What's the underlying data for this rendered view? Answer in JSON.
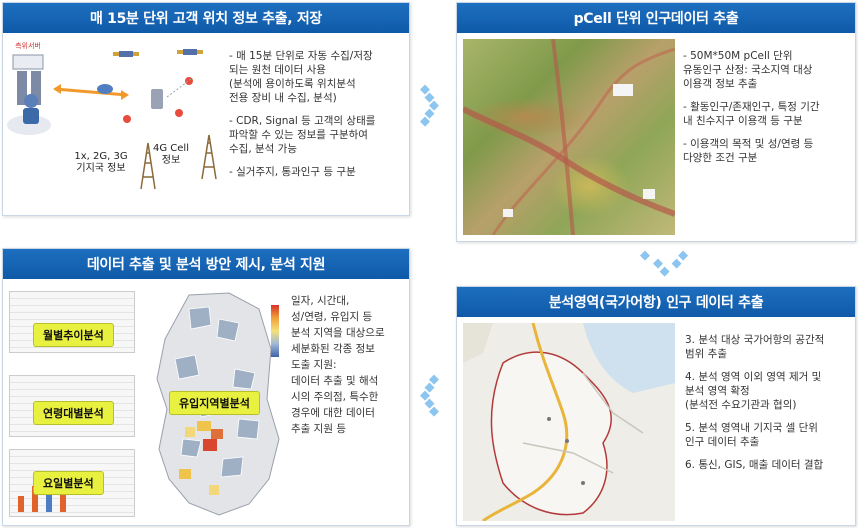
{
  "panels": {
    "top_left": {
      "title": "매 15분 단위 고객 위치 정보 추출, 저장",
      "bullets": [
        "- 매 15분 단위로 자동 수집/저장\n  되는 원천 데이터 사용\n  (분석에 용이하도록 위치분석\n  전용 장비 내 수집, 분석)",
        "- CDR, Signal 등 고객의 상태를\n  파악할 수 있는 정보를 구분하여\n  수집, 분석 가능",
        "- 실거주지, 통과인구 등 구분"
      ],
      "caption_left": "1x, 2G, 3G\n기지국 정보",
      "caption_right": "4G Cell\n정보",
      "server_label": "측위서버"
    },
    "top_right": {
      "title": "pCell 단위 인구데이터 추출",
      "bullets": [
        "- 50M*50M pCell 단위\n  유동인구 산정: 국소지역 대상\n  이용객 정보 추출",
        "- 활동인구/존재인구, 특정 기간\n  내 친수지구 이용객 등 구분",
        "- 이용객의 목적 및 성/연령 등\n  다양한 조건 구분"
      ]
    },
    "bottom_left": {
      "title": "데이터 추출 및 분석 방안 제시, 분석 지원",
      "tags": [
        "월별추이분석",
        "연령대별분석",
        "요일별분석",
        "유입지역별분석"
      ],
      "bullets": [
        "일자, 시간대,\n성/연령, 유입지 등\n분석 지역을 대상으로\n세분화된 각종 정보\n도출 지원:\n데이터 추출 및 해석\n시의 주의점, 특수한\n경우에 대한 데이터\n추출 지원 등"
      ]
    },
    "bottom_right": {
      "title": "분석영역(국가어항) 인구 데이터 추출",
      "bullets": [
        "3. 분석 대상 국가어항의 공간적\n   범위 추출",
        "4. 분석 영역 이외 영역 제거 및\n   분석 영역 확정\n   (분석전 수요기관과 협의)",
        "5. 분석 영역내 기지국 셀 단위\n   인구 데이터 추출",
        "6. 통신, GIS, 매출 데이터 결합"
      ]
    }
  },
  "colors": {
    "header_blue": "#1566b8",
    "arrow_blue": "#8cc5ef",
    "tag_yellow": "#e8f040",
    "boundary_red": "#b33a3a"
  }
}
